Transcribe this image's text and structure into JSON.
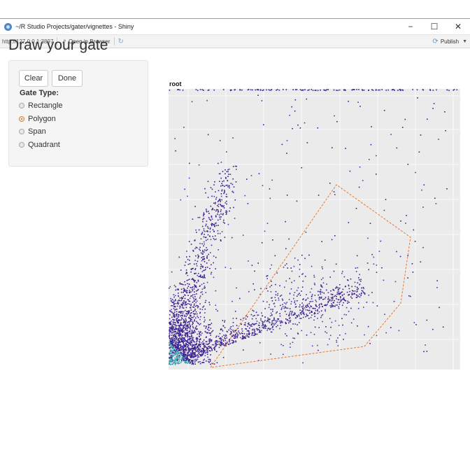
{
  "window": {
    "title": "~/R Studio Projects/gater/vignettes - Shiny",
    "controls": {
      "minimize": "−",
      "maximize": "☐",
      "close": "✕"
    }
  },
  "toolbar": {
    "url": "http://127.0.0.1:3897",
    "open_in_browser": "Open in Browser",
    "publish": "Publish"
  },
  "page": {
    "title": "Draw your gate"
  },
  "controls": {
    "clear": "Clear",
    "done": "Done",
    "gate_type_label": "Gate Type:",
    "gate_types": [
      "Rectangle",
      "Polygon",
      "Span",
      "Quadrant"
    ],
    "selected": "Polygon"
  },
  "plot": {
    "title": "root",
    "background": "#ebebeb",
    "gridline_color": "#ffffff",
    "gate_color": "#e8772e",
    "point_colors": [
      "#3b1d8c",
      "#4a3aa5",
      "#3f7fb0",
      "#2ab3a2"
    ]
  }
}
